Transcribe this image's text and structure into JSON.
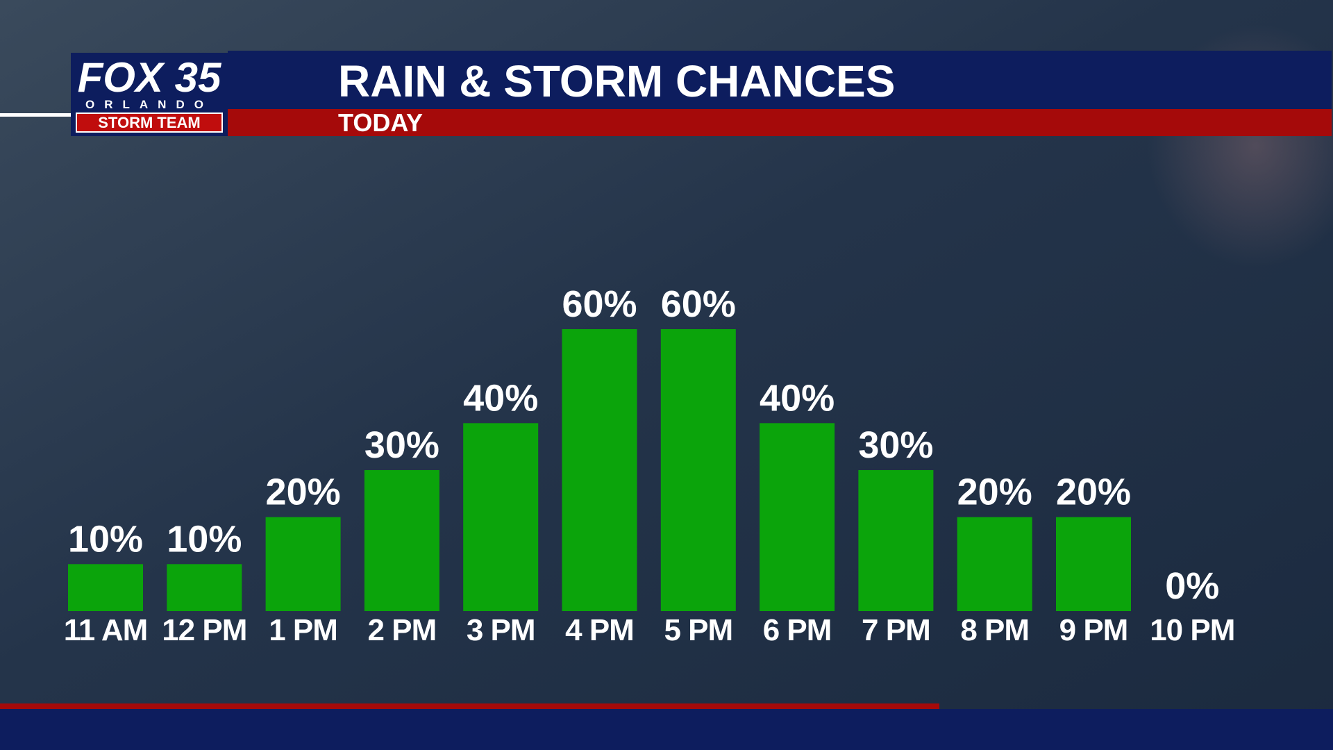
{
  "logo": {
    "brand": "FOX 35",
    "city": "ORLANDO",
    "team": "STORM TEAM"
  },
  "chart_data": {
    "type": "bar",
    "title": "RAIN & STORM CHANCES",
    "subtitle": "TODAY",
    "categories": [
      "11 AM",
      "12 PM",
      "1 PM",
      "2 PM",
      "3 PM",
      "4 PM",
      "5 PM",
      "6 PM",
      "7 PM",
      "8 PM",
      "9 PM",
      "10 PM"
    ],
    "values": [
      10,
      10,
      20,
      30,
      40,
      60,
      60,
      40,
      30,
      20,
      20,
      0
    ],
    "value_labels": [
      "10%",
      "10%",
      "20%",
      "30%",
      "40%",
      "60%",
      "60%",
      "40%",
      "30%",
      "20%",
      "20%",
      "0%"
    ],
    "color": "#0ba40b"
  }
}
